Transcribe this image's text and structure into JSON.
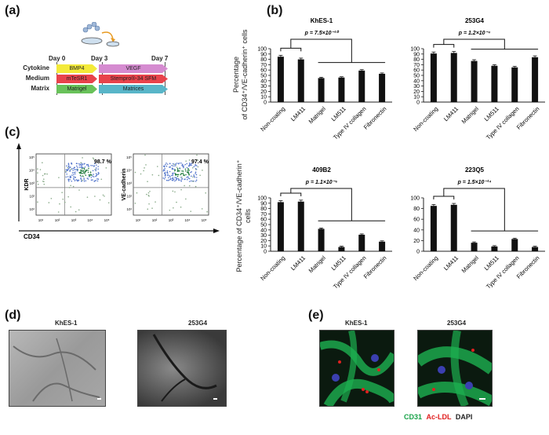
{
  "panels": {
    "a": "(a)",
    "b": "(b)",
    "c": "(c)",
    "d": "(d)",
    "e": "(e)"
  },
  "timeline": {
    "days": [
      "Day 0",
      "Day 3",
      "Day 7"
    ],
    "rows": [
      {
        "label": "Cytokine",
        "seg1": "BMP4",
        "seg2": "VEGF",
        "c1": "#f3ea3a",
        "c2": "#d58bd0"
      },
      {
        "label": "Medium",
        "seg1": "mTeSR1",
        "seg2": "Stempro®-34 SFM",
        "c1": "#e8434b",
        "c2": "#e8434b"
      },
      {
        "label": "Matrix",
        "seg1": "Matrigel",
        "seg2": "Matrices",
        "c1": "#69c25a",
        "c2": "#58b5c8"
      }
    ]
  },
  "flow": {
    "plots": [
      {
        "ylabel": "KDR",
        "pct": "98.7 %"
      },
      {
        "ylabel": "VE-cadherin",
        "pct": "97.4 %"
      }
    ],
    "xlabel": "CD34",
    "ticks": [
      "10¹",
      "10²",
      "10³",
      "10⁴",
      "10⁵"
    ]
  },
  "bar_ylabel_top": "Percentage",
  "bar_ylabel_top2": "of CD34⁺/VE-cadherin⁺ cells",
  "bar_ylabel_bottom": "Percentage of CD34⁺/VE-cadherin⁺ cells",
  "chart_data": [
    {
      "type": "bar",
      "title": "KhES-1",
      "pvalue": "p = 7.5×10⁻¹⁰",
      "categories": [
        "Non-coating",
        "LM411",
        "Matrigel",
        "LM511",
        "Type IV collagen",
        "Fibronectin"
      ],
      "values": [
        85,
        80,
        45,
        46,
        59,
        53
      ],
      "ylim": [
        0,
        100
      ],
      "yticks": [
        0,
        10,
        20,
        30,
        40,
        50,
        60,
        70,
        80,
        90,
        100
      ]
    },
    {
      "type": "bar",
      "title": "253G4",
      "pvalue": "p = 1.2×10⁻⁴",
      "categories": [
        "Non-coating",
        "LM411",
        "Matrigel",
        "LM511",
        "Type IV collagen",
        "Fibronectin"
      ],
      "values": [
        91,
        92,
        77,
        68,
        65,
        84
      ],
      "ylim": [
        0,
        100
      ],
      "yticks": [
        0,
        10,
        20,
        30,
        40,
        50,
        60,
        70,
        80,
        90,
        100
      ]
    },
    {
      "type": "bar",
      "title": "409B2",
      "pvalue": "p = 1.1×10⁻⁶",
      "categories": [
        "Non-coating",
        "LM411",
        "Matrigel",
        "LM511",
        "Type IV collagen",
        "Fibronectin"
      ],
      "values": [
        92,
        93,
        42,
        8,
        31,
        18
      ],
      "ylim": [
        0,
        100
      ],
      "yticks": [
        0,
        10,
        20,
        30,
        40,
        50,
        60,
        70,
        80,
        90,
        100
      ]
    },
    {
      "type": "bar",
      "title": "223Q5",
      "pvalue": "p = 1.5×10⁻¹⁴",
      "categories": [
        "Non-coating",
        "LM411",
        "Matrigel",
        "LM511",
        "Type IV collagen",
        "Fibronectin"
      ],
      "values": [
        85,
        87,
        16,
        9,
        23,
        8
      ],
      "ylim": [
        0,
        100
      ],
      "yticks": [
        0,
        20,
        40,
        60,
        80,
        100
      ]
    }
  ],
  "micrographs_d": [
    "KhES-1",
    "253G4"
  ],
  "micrographs_e": [
    "KhES-1",
    "253G4"
  ],
  "legend_e": {
    "cd31": "CD31",
    "acldl": "Ac-LDL",
    "dapi": "DAPI",
    "c_cd31": "#1aa34a",
    "c_acldl": "#e02020",
    "c_dapi": "#222222"
  }
}
